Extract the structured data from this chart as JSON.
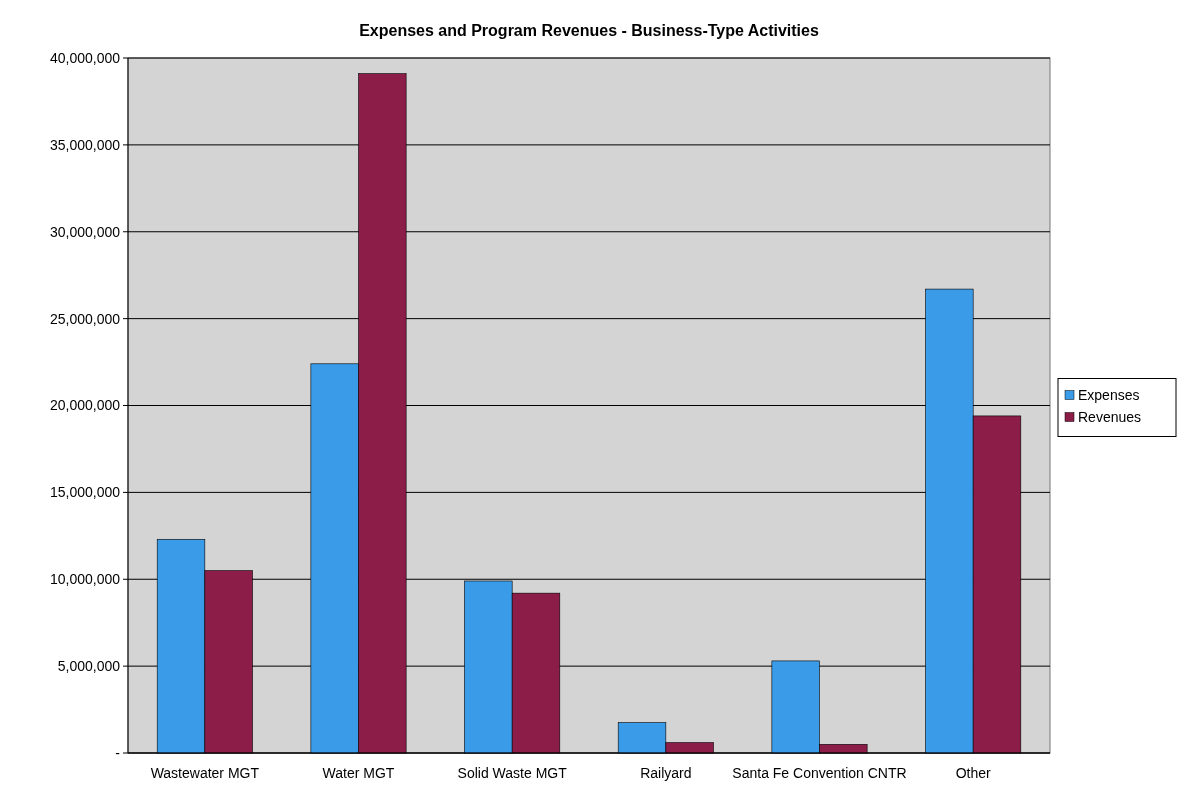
{
  "chart_data": {
    "type": "bar",
    "title": "Expenses and Program Revenues - Business-Type Activities",
    "categories": [
      "Wastewater MGT",
      "Water MGT",
      "Solid Waste MGT",
      "Railyard",
      "Santa Fe Convention CNTR",
      "Other"
    ],
    "series": [
      {
        "name": "Expenses",
        "color": "#3a9be8",
        "values": [
          12300000,
          22400000,
          9900000,
          1750000,
          5300000,
          26700000
        ]
      },
      {
        "name": "Revenues",
        "color": "#8c1c48",
        "values": [
          10500000,
          39100000,
          9200000,
          600000,
          500000,
          19400000
        ]
      }
    ],
    "ylim": [
      0,
      40000000
    ],
    "yticks": [
      {
        "value": 0,
        "label": "-"
      },
      {
        "value": 5000000,
        "label": "5,000,000"
      },
      {
        "value": 10000000,
        "label": "10,000,000"
      },
      {
        "value": 15000000,
        "label": "15,000,000"
      },
      {
        "value": 20000000,
        "label": "20,000,000"
      },
      {
        "value": 25000000,
        "label": "25,000,000"
      },
      {
        "value": 30000000,
        "label": "30,000,000"
      },
      {
        "value": 35000000,
        "label": "35,000,000"
      },
      {
        "value": 40000000,
        "label": "40,000,000"
      }
    ],
    "grid": "y",
    "legend": "right"
  }
}
